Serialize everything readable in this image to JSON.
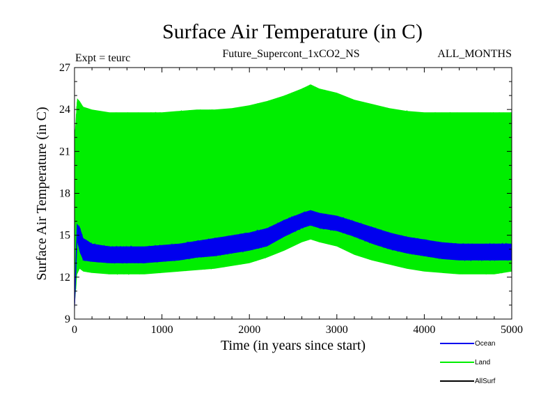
{
  "chart_data": {
    "type": "line",
    "title": "Surface Air Temperature (in C)",
    "subtitle_left": "Expt = teurc",
    "subtitle_center": "Future_Supercont_1xCO2_NS",
    "subtitle_right": "ALL_MONTHS",
    "xlabel": "Time (in years since start)",
    "ylabel": "Surface Air Temperature (in C)",
    "xlim": [
      0,
      5000
    ],
    "ylim": [
      9,
      27
    ],
    "xticks": [
      0,
      1000,
      2000,
      3000,
      4000,
      5000
    ],
    "xtick_labels": [
      "0",
      "1000",
      "2000",
      "3000",
      "4000",
      "5000"
    ],
    "yticks": [
      9,
      12,
      15,
      18,
      21,
      24,
      27
    ],
    "ytick_labels": [
      "9",
      "12",
      "15",
      "18",
      "21",
      "24",
      "27"
    ],
    "grid": false,
    "legend_position": "bottom-right",
    "series": [
      {
        "name": "Land",
        "color": "#00ee00",
        "x": [
          0,
          30,
          60,
          100,
          200,
          400,
          600,
          800,
          1000,
          1200,
          1400,
          1600,
          1800,
          2000,
          2200,
          2400,
          2600,
          2700,
          2800,
          3000,
          3200,
          3400,
          3600,
          3800,
          4000,
          4200,
          4400,
          4600,
          4800,
          5000
        ],
        "upper": [
          22.0,
          24.8,
          24.6,
          24.2,
          24.0,
          23.8,
          23.8,
          23.8,
          23.8,
          23.9,
          24.0,
          24.0,
          24.1,
          24.3,
          24.6,
          25.0,
          25.5,
          25.8,
          25.5,
          25.2,
          24.7,
          24.4,
          24.1,
          23.9,
          23.8,
          23.8,
          23.8,
          23.8,
          23.8,
          23.8
        ],
        "lower": [
          9.8,
          12.2,
          12.6,
          12.4,
          12.3,
          12.2,
          12.2,
          12.2,
          12.3,
          12.4,
          12.5,
          12.6,
          12.8,
          13.0,
          13.4,
          13.9,
          14.5,
          14.7,
          14.5,
          14.2,
          13.6,
          13.2,
          12.9,
          12.6,
          12.4,
          12.3,
          12.2,
          12.2,
          12.2,
          12.4
        ]
      },
      {
        "name": "Ocean",
        "color": "#0000ee",
        "x": [
          0,
          30,
          60,
          100,
          200,
          400,
          600,
          800,
          1000,
          1200,
          1400,
          1600,
          1800,
          2000,
          2200,
          2400,
          2600,
          2700,
          2800,
          3000,
          3200,
          3400,
          3600,
          3800,
          4000,
          4200,
          4400,
          4600,
          4800,
          5000
        ],
        "upper": [
          10.2,
          15.8,
          15.6,
          14.8,
          14.4,
          14.2,
          14.2,
          14.2,
          14.3,
          14.4,
          14.6,
          14.8,
          15.0,
          15.2,
          15.5,
          16.1,
          16.6,
          16.8,
          16.6,
          16.4,
          16.0,
          15.6,
          15.2,
          14.9,
          14.7,
          14.5,
          14.4,
          14.4,
          14.4,
          14.4
        ],
        "lower": [
          9.6,
          14.6,
          13.8,
          13.2,
          13.1,
          13.0,
          13.0,
          13.0,
          13.1,
          13.2,
          13.4,
          13.5,
          13.7,
          13.9,
          14.2,
          14.9,
          15.5,
          15.7,
          15.5,
          15.3,
          14.9,
          14.4,
          14.0,
          13.7,
          13.5,
          13.3,
          13.2,
          13.2,
          13.2,
          13.2
        ]
      },
      {
        "name": "AllSurf",
        "color": "#000000",
        "x": [],
        "upper": [],
        "lower": []
      }
    ],
    "legend": [
      {
        "name": "Ocean",
        "color": "#0000ee"
      },
      {
        "name": "Land",
        "color": "#00ee00"
      },
      {
        "name": "AllSurf",
        "color": "#000000"
      }
    ]
  }
}
